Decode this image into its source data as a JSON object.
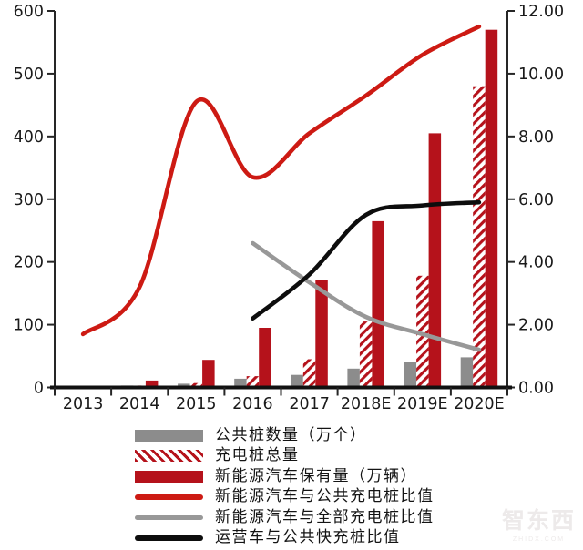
{
  "watermark": {
    "text": "智东西",
    "subtext": "ZHIDX.COM"
  },
  "chart_data": {
    "type": "combo-bar-line",
    "title": "",
    "grid": false,
    "legend_position": "bottom-left",
    "categories": [
      "2013",
      "2014",
      "2015",
      "2016",
      "2017",
      "2018E",
      "2019E",
      "2020E"
    ],
    "left_axis": {
      "min": 0,
      "max": 600,
      "tick_step": 100,
      "tick_labels": [
        "0",
        "100",
        "200",
        "300",
        "400",
        "500",
        "600"
      ]
    },
    "right_axis": {
      "min": 0,
      "max": 12,
      "tick_step": 2,
      "tick_labels": [
        "0.00",
        "2.00",
        "4.00",
        "6.00",
        "8.00",
        "10.00",
        "12.00"
      ]
    },
    "bar_series": [
      {
        "key": "public-piles",
        "name": "公共桩数量（万个）",
        "color": "#8c8c8c",
        "fill": "solid",
        "axis": "left",
        "values": [
          1,
          3,
          6,
          14,
          20,
          30,
          40,
          48
        ]
      },
      {
        "key": "total-piles",
        "name": "充电桩总量",
        "color": "#b5121b",
        "fill": "hatched",
        "axis": "left",
        "values": [
          1.5,
          3,
          7,
          18,
          45,
          105,
          178,
          480
        ]
      },
      {
        "key": "nev-ownership",
        "name": "新能源汽车保有量（万辆）",
        "color": "#b5121b",
        "fill": "solid",
        "axis": "left",
        "values": [
          2.5,
          11,
          44,
          95,
          172,
          265,
          405,
          570
        ]
      }
    ],
    "line_series": [
      {
        "key": "nev-per-public-pile",
        "name": "新能源汽车与公共充电桩比值",
        "color": "#cd1a13",
        "axis": "right",
        "values": [
          1.7,
          3.2,
          9.1,
          6.7,
          8.1,
          9.3,
          10.6,
          11.5
        ]
      },
      {
        "key": "nev-per-total-pile",
        "name": "新能源汽车与全部充电桩比值",
        "color": "#989898",
        "axis": "right",
        "values": [
          null,
          null,
          null,
          4.6,
          3.35,
          2.25,
          1.7,
          1.2
        ]
      },
      {
        "key": "opvehicle-per-fast-pile",
        "name": "运营车与公共快充桩比值",
        "color": "#0d0d0d",
        "axis": "right",
        "values": [
          null,
          null,
          null,
          2.2,
          3.6,
          5.5,
          5.8,
          5.9
        ]
      }
    ]
  }
}
